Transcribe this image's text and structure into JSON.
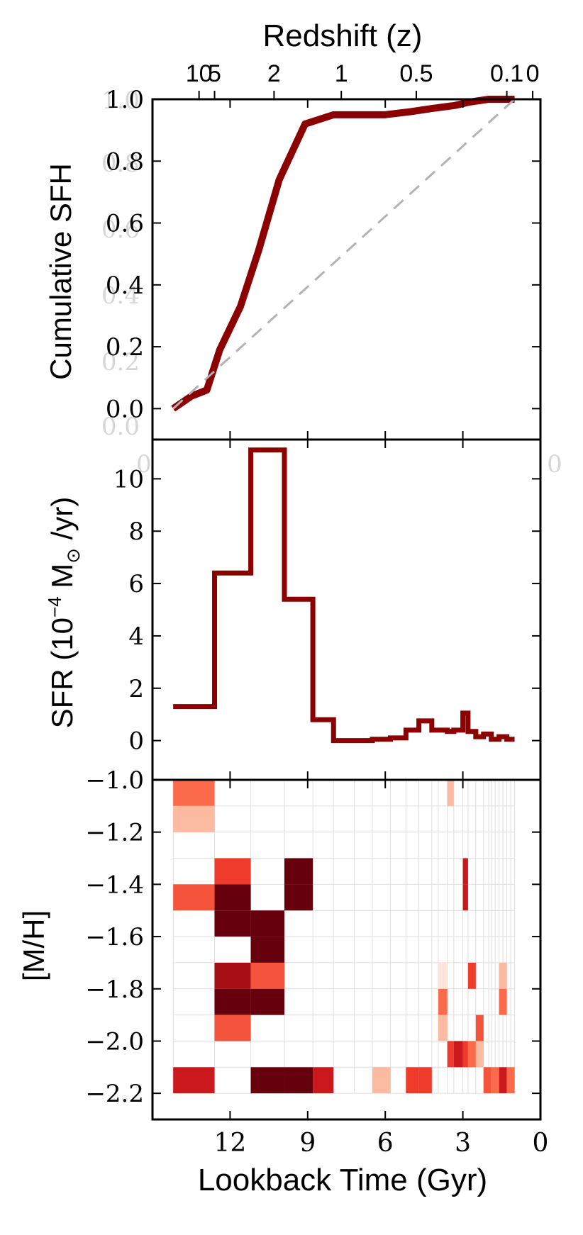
{
  "chart_data": [
    {
      "type": "line",
      "title": "Redshift (z)",
      "ylabel": "Cumulative SFH",
      "ylim": [
        -0.1,
        1.0
      ],
      "yticks": [
        "0.0",
        "0.2",
        "0.4",
        "0.6",
        "0.8",
        "1.0"
      ],
      "top_axis_ticks": [
        {
          "label": "10",
          "t": 13.2
        },
        {
          "label": "5",
          "t": 12.6
        },
        {
          "label": "2",
          "t": 10.3
        },
        {
          "label": "1",
          "t": 7.7
        },
        {
          "label": "0.5",
          "t": 4.8
        },
        {
          "label": "0.1",
          "t": 1.3
        },
        {
          "label": "0",
          "t": 0.3
        }
      ],
      "ghost_labels": [
        "1.0",
        "0.8",
        "0.6",
        "0.4",
        "0.2",
        "0.0",
        "0",
        "0"
      ],
      "series": [
        {
          "color": "#8b0000",
          "x": [
            14.2,
            13.5,
            12.9,
            12.4,
            11.6,
            10.9,
            10.1,
            9.1,
            8.0,
            6.0,
            5.0,
            4.2,
            3.3,
            2.8,
            2.0,
            1.0
          ],
          "y": [
            0.0,
            0.04,
            0.06,
            0.19,
            0.33,
            0.51,
            0.74,
            0.92,
            0.95,
            0.95,
            0.96,
            0.97,
            0.98,
            0.99,
            1.0,
            1.0
          ]
        },
        {
          "style": "dashed",
          "color": "#b3b3b3",
          "x": [
            14.2,
            1.0
          ],
          "y": [
            0.0,
            1.0
          ]
        }
      ]
    },
    {
      "type": "line",
      "ylabel_main": "SFR (10",
      "ylabel_exp": "−4",
      "ylabel_rest": " M",
      "ylabel_sym": "⊙",
      "ylabel_end": " /yr)",
      "ylim": [
        -1.5,
        11.5
      ],
      "yticks": [
        "0",
        "2",
        "4",
        "6",
        "8",
        "10"
      ],
      "series": [
        {
          "step": true,
          "color": "#8b0000",
          "x": [
            14.2,
            12.6,
            12.6,
            11.2,
            11.2,
            9.9,
            9.9,
            8.8,
            8.8,
            8.0,
            8.0,
            6.5,
            6.5,
            5.8,
            5.8,
            5.2,
            5.2,
            4.7,
            4.7,
            4.2,
            4.2,
            3.6,
            3.6,
            3.35,
            3.35,
            3.0,
            3.0,
            2.8,
            2.8,
            2.5,
            2.5,
            2.2,
            2.2,
            1.9,
            1.9,
            1.6,
            1.6,
            1.3,
            1.3,
            1.0
          ],
          "y": [
            1.3,
            1.3,
            6.4,
            6.4,
            11.1,
            11.1,
            5.4,
            5.4,
            0.8,
            0.8,
            0.0,
            0.0,
            0.05,
            0.05,
            0.1,
            0.1,
            0.4,
            0.4,
            0.75,
            0.75,
            0.4,
            0.4,
            0.35,
            0.35,
            0.4,
            0.4,
            1.05,
            1.05,
            0.35,
            0.35,
            0.15,
            0.15,
            0.25,
            0.25,
            0.05,
            0.05,
            0.15,
            0.15,
            0.05,
            0.05
          ]
        }
      ]
    },
    {
      "type": "heatmap",
      "ylabel": "[M/H]",
      "xlabel": "Lookback Time (Gyr)",
      "xlim": [
        15,
        0
      ],
      "ylim": [
        -2.3,
        -1.0
      ],
      "yticks": [
        "−1.0",
        "−1.2",
        "−1.4",
        "−1.6",
        "−1.8",
        "−2.0",
        "−2.2"
      ],
      "xticks": [
        "12",
        "9",
        "6",
        "3",
        "0"
      ],
      "colors": {
        "a": "#67000d",
        "b": "#a50f15",
        "c": "#cb181d",
        "d": "#ef3b2c",
        "e": "#f4533c",
        "f": "#fb6a4a",
        "g": "#fcbba1",
        "h": "#fde5d9"
      },
      "cells": [
        {
          "t0": 14.2,
          "t1": 12.6,
          "m": -1.05,
          "c": "f"
        },
        {
          "t0": 14.2,
          "t1": 12.6,
          "m": -1.15,
          "c": "g"
        },
        {
          "t0": 14.2,
          "t1": 12.6,
          "m": -1.45,
          "c": "e"
        },
        {
          "t0": 14.2,
          "t1": 12.6,
          "m": -2.15,
          "c": "c"
        },
        {
          "t0": 12.6,
          "t1": 11.2,
          "m": -1.35,
          "c": "d"
        },
        {
          "t0": 12.6,
          "t1": 11.2,
          "m": -1.45,
          "c": "a"
        },
        {
          "t0": 12.6,
          "t1": 11.2,
          "m": -1.55,
          "c": "a"
        },
        {
          "t0": 12.6,
          "t1": 11.2,
          "m": -1.75,
          "c": "b"
        },
        {
          "t0": 12.6,
          "t1": 11.2,
          "m": -1.85,
          "c": "a"
        },
        {
          "t0": 12.6,
          "t1": 11.2,
          "m": -1.95,
          "c": "e"
        },
        {
          "t0": 11.2,
          "t1": 9.9,
          "m": -1.55,
          "c": "a"
        },
        {
          "t0": 11.2,
          "t1": 9.9,
          "m": -1.65,
          "c": "a"
        },
        {
          "t0": 11.2,
          "t1": 9.9,
          "m": -1.75,
          "c": "e"
        },
        {
          "t0": 11.2,
          "t1": 9.9,
          "m": -1.85,
          "c": "a"
        },
        {
          "t0": 11.2,
          "t1": 9.9,
          "m": -2.15,
          "c": "a"
        },
        {
          "t0": 9.9,
          "t1": 8.8,
          "m": -1.35,
          "c": "a"
        },
        {
          "t0": 9.9,
          "t1": 8.8,
          "m": -1.45,
          "c": "a"
        },
        {
          "t0": 9.9,
          "t1": 8.8,
          "m": -2.15,
          "c": "a"
        },
        {
          "t0": 8.8,
          "t1": 8.0,
          "m": -2.15,
          "c": "c"
        },
        {
          "t0": 6.5,
          "t1": 5.8,
          "m": -2.15,
          "c": "g"
        },
        {
          "t0": 5.2,
          "t1": 4.7,
          "m": -2.15,
          "c": "d"
        },
        {
          "t0": 4.7,
          "t1": 4.2,
          "m": -2.15,
          "c": "d"
        },
        {
          "t0": 3.6,
          "t1": 3.35,
          "m": -1.05,
          "c": "g"
        },
        {
          "t0": 3.0,
          "t1": 2.8,
          "m": -1.35,
          "c": "c"
        },
        {
          "t0": 3.0,
          "t1": 2.8,
          "m": -1.45,
          "c": "c"
        },
        {
          "t0": 3.95,
          "t1": 3.6,
          "m": -1.75,
          "c": "h"
        },
        {
          "t0": 3.95,
          "t1": 3.6,
          "m": -1.85,
          "c": "f"
        },
        {
          "t0": 3.95,
          "t1": 3.6,
          "m": -1.95,
          "c": "g"
        },
        {
          "t0": 3.6,
          "t1": 3.35,
          "m": -2.05,
          "c": "d"
        },
        {
          "t0": 3.35,
          "t1": 3.0,
          "m": -2.05,
          "c": "c"
        },
        {
          "t0": 3.0,
          "t1": 2.8,
          "m": -2.05,
          "c": "d"
        },
        {
          "t0": 2.8,
          "t1": 2.5,
          "m": -1.75,
          "c": "d"
        },
        {
          "t0": 2.8,
          "t1": 2.5,
          "m": -2.05,
          "c": "f"
        },
        {
          "t0": 2.5,
          "t1": 2.2,
          "m": -1.95,
          "c": "e"
        },
        {
          "t0": 2.5,
          "t1": 2.2,
          "m": -2.05,
          "c": "g"
        },
        {
          "t0": 2.2,
          "t1": 1.9,
          "m": -2.15,
          "c": "e"
        },
        {
          "t0": 1.9,
          "t1": 1.6,
          "m": -2.15,
          "c": "f"
        },
        {
          "t0": 1.6,
          "t1": 1.3,
          "m": -1.75,
          "c": "g"
        },
        {
          "t0": 1.6,
          "t1": 1.3,
          "m": -1.85,
          "c": "f"
        },
        {
          "t0": 1.6,
          "t1": 1.3,
          "m": -2.15,
          "c": "c"
        },
        {
          "t0": 1.3,
          "t1": 1.0,
          "m": -2.15,
          "c": "f"
        }
      ],
      "grid_times": [
        14.2,
        12.6,
        11.2,
        9.9,
        8.8,
        8.0,
        7.2,
        6.5,
        5.8,
        5.2,
        4.7,
        4.2,
        3.95,
        3.6,
        3.35,
        3.0,
        2.8,
        2.5,
        2.2,
        2.0,
        1.9,
        1.75,
        1.6,
        1.45,
        1.3,
        1.15,
        1.0
      ],
      "grid_mets": [
        -2.2,
        -2.1,
        -2.0,
        -1.9,
        -1.8,
        -1.7,
        -1.6,
        -1.5,
        -1.4,
        -1.3,
        -1.2,
        -1.1,
        -1.0
      ]
    }
  ]
}
